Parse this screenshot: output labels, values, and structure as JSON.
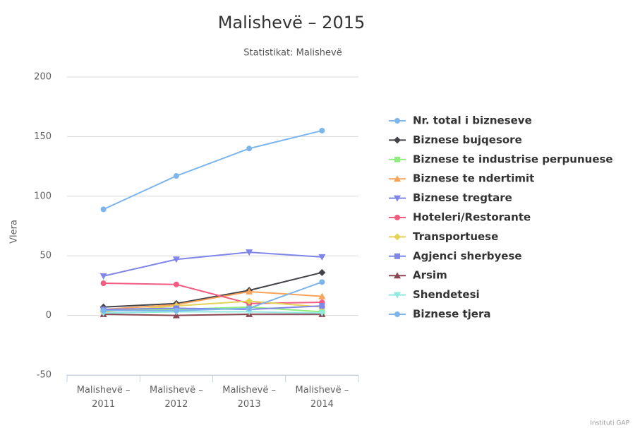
{
  "chart_data": {
    "type": "line",
    "title": "Malishevë – 2015",
    "subtitle": "Statistikat: Malishevë",
    "y_label": "Vlera",
    "credits": "Instituti GAP",
    "categories": [
      "Malishevë – 2011",
      "Malishevë – 2012",
      "Malishevë – 2013",
      "Malishevë – 2014"
    ],
    "ylim": [
      -50,
      200
    ],
    "yticks": [
      -50,
      0,
      50,
      100,
      150,
      200
    ],
    "grid": true,
    "series": [
      {
        "name": "Nr. total i bizneseve",
        "color": "#7cb5ec",
        "marker": "circle",
        "values": [
          89,
          117,
          140,
          155
        ]
      },
      {
        "name": "Biznese bujqesore",
        "color": "#434348",
        "marker": "diamond",
        "values": [
          7,
          10,
          21,
          36
        ]
      },
      {
        "name": "Biznese te industrise perpunuese",
        "color": "#90ed7d",
        "marker": "square",
        "values": [
          4,
          5,
          7,
          3
        ]
      },
      {
        "name": "Biznese te ndertimit",
        "color": "#f7a35c",
        "marker": "triangle",
        "values": [
          5,
          9,
          20,
          16
        ]
      },
      {
        "name": "Biznese tregtare",
        "color": "#8085e9",
        "marker": "triangle-down",
        "values": [
          33,
          47,
          53,
          49
        ]
      },
      {
        "name": "Hoteleri/Restorante",
        "color": "#f15c80",
        "marker": "circle",
        "values": [
          27,
          26,
          10,
          11
        ]
      },
      {
        "name": "Transportuese",
        "color": "#e4d354",
        "marker": "diamond",
        "values": [
          3,
          8,
          12,
          7
        ]
      },
      {
        "name": "Agjenci sherbyese",
        "color": "#8085e8",
        "marker": "square",
        "values": [
          5,
          6,
          5,
          8
        ]
      },
      {
        "name": "Arsim",
        "color": "#8d4653",
        "marker": "triangle",
        "values": [
          1,
          0,
          1,
          1
        ]
      },
      {
        "name": "Shendetesi",
        "color": "#91e8e1",
        "marker": "triangle-down",
        "values": [
          2,
          3,
          3,
          2
        ]
      },
      {
        "name": "Biznese tjera",
        "color": "#7cb5ec",
        "marker": "circle",
        "values": [
          4,
          4,
          6,
          28
        ]
      }
    ]
  }
}
